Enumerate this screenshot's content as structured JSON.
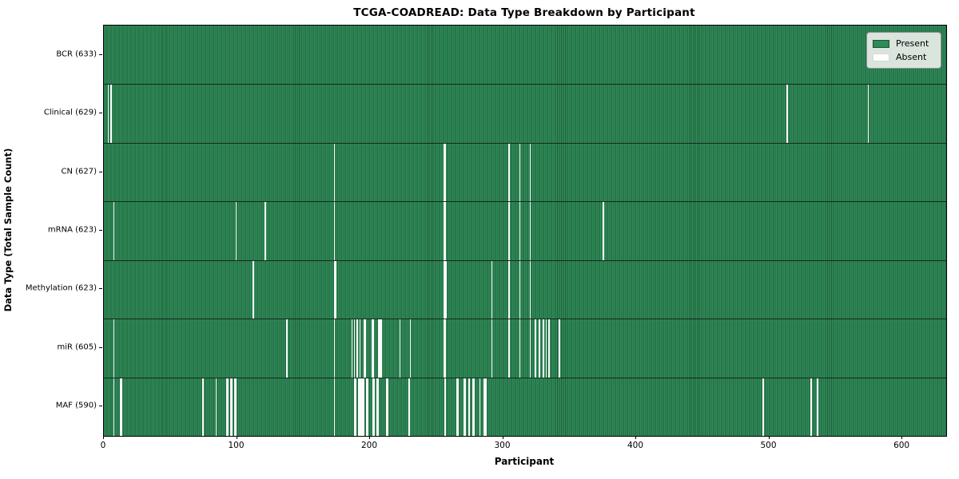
{
  "title": "TCGA-COADREAD: Data Type Breakdown by Participant",
  "xlabel": "Participant",
  "ylabel": "Data Type (Total Sample Count)",
  "legend": {
    "present_label": "Present",
    "absent_label": "Absent"
  },
  "colors": {
    "present": "#2e8b57",
    "cell_edge": "#215f3d",
    "absent": "#fbfbfb",
    "row_separator": "#15291c",
    "spine": "#000000",
    "legend_bg": "#ecefec"
  },
  "chart_data": {
    "type": "heatmap",
    "title": "TCGA-COADREAD: Data Type Breakdown by Participant",
    "xlabel": "Participant",
    "ylabel": "Data Type (Total Sample Count)",
    "legend": [
      "Present",
      "Absent"
    ],
    "legend_position": "upper right",
    "grid": false,
    "n_participants": 633,
    "x_range": [
      0,
      633
    ],
    "x_ticks": [
      0,
      100,
      200,
      300,
      400,
      500,
      600
    ],
    "rows": [
      {
        "name": "BCR",
        "label": "BCR (633)",
        "present_count": 633,
        "absent_participants": []
      },
      {
        "name": "Clinical",
        "label": "Clinical (629)",
        "present_count": 629,
        "absent_participants": [
          3,
          5,
          513,
          574
        ]
      },
      {
        "name": "CN",
        "label": "CN (627)",
        "present_count": 627,
        "absent_participants": [
          173,
          255,
          256,
          304,
          312,
          320
        ]
      },
      {
        "name": "mRNA",
        "label": "mRNA (623)",
        "present_count": 623,
        "absent_participants": [
          7,
          99,
          121,
          173,
          255,
          256,
          304,
          312,
          320,
          375
        ]
      },
      {
        "name": "Methylation",
        "label": "Methylation (623)",
        "present_count": 623,
        "absent_participants": [
          112,
          173,
          174,
          255,
          256,
          257,
          291,
          304,
          312,
          320
        ]
      },
      {
        "name": "miR",
        "label": "miR (605)",
        "present_count": 605,
        "absent_participants": [
          7,
          137,
          173,
          186,
          188,
          190,
          192,
          195,
          196,
          201,
          202,
          206,
          207,
          208,
          222,
          230,
          255,
          256,
          291,
          304,
          312,
          320,
          324,
          327,
          330,
          332,
          334,
          342
        ]
      },
      {
        "name": "MAF",
        "label": "MAF (590)",
        "present_count": 590,
        "absent_participants": [
          7,
          12,
          13,
          74,
          84,
          92,
          93,
          95,
          96,
          98,
          99,
          173,
          188,
          189,
          191,
          192,
          193,
          194,
          195,
          197,
          198,
          202,
          203,
          205,
          206,
          212,
          213,
          229,
          256,
          265,
          266,
          270,
          271,
          274,
          277,
          278,
          282,
          285,
          286,
          287,
          495,
          531,
          536
        ]
      }
    ]
  }
}
